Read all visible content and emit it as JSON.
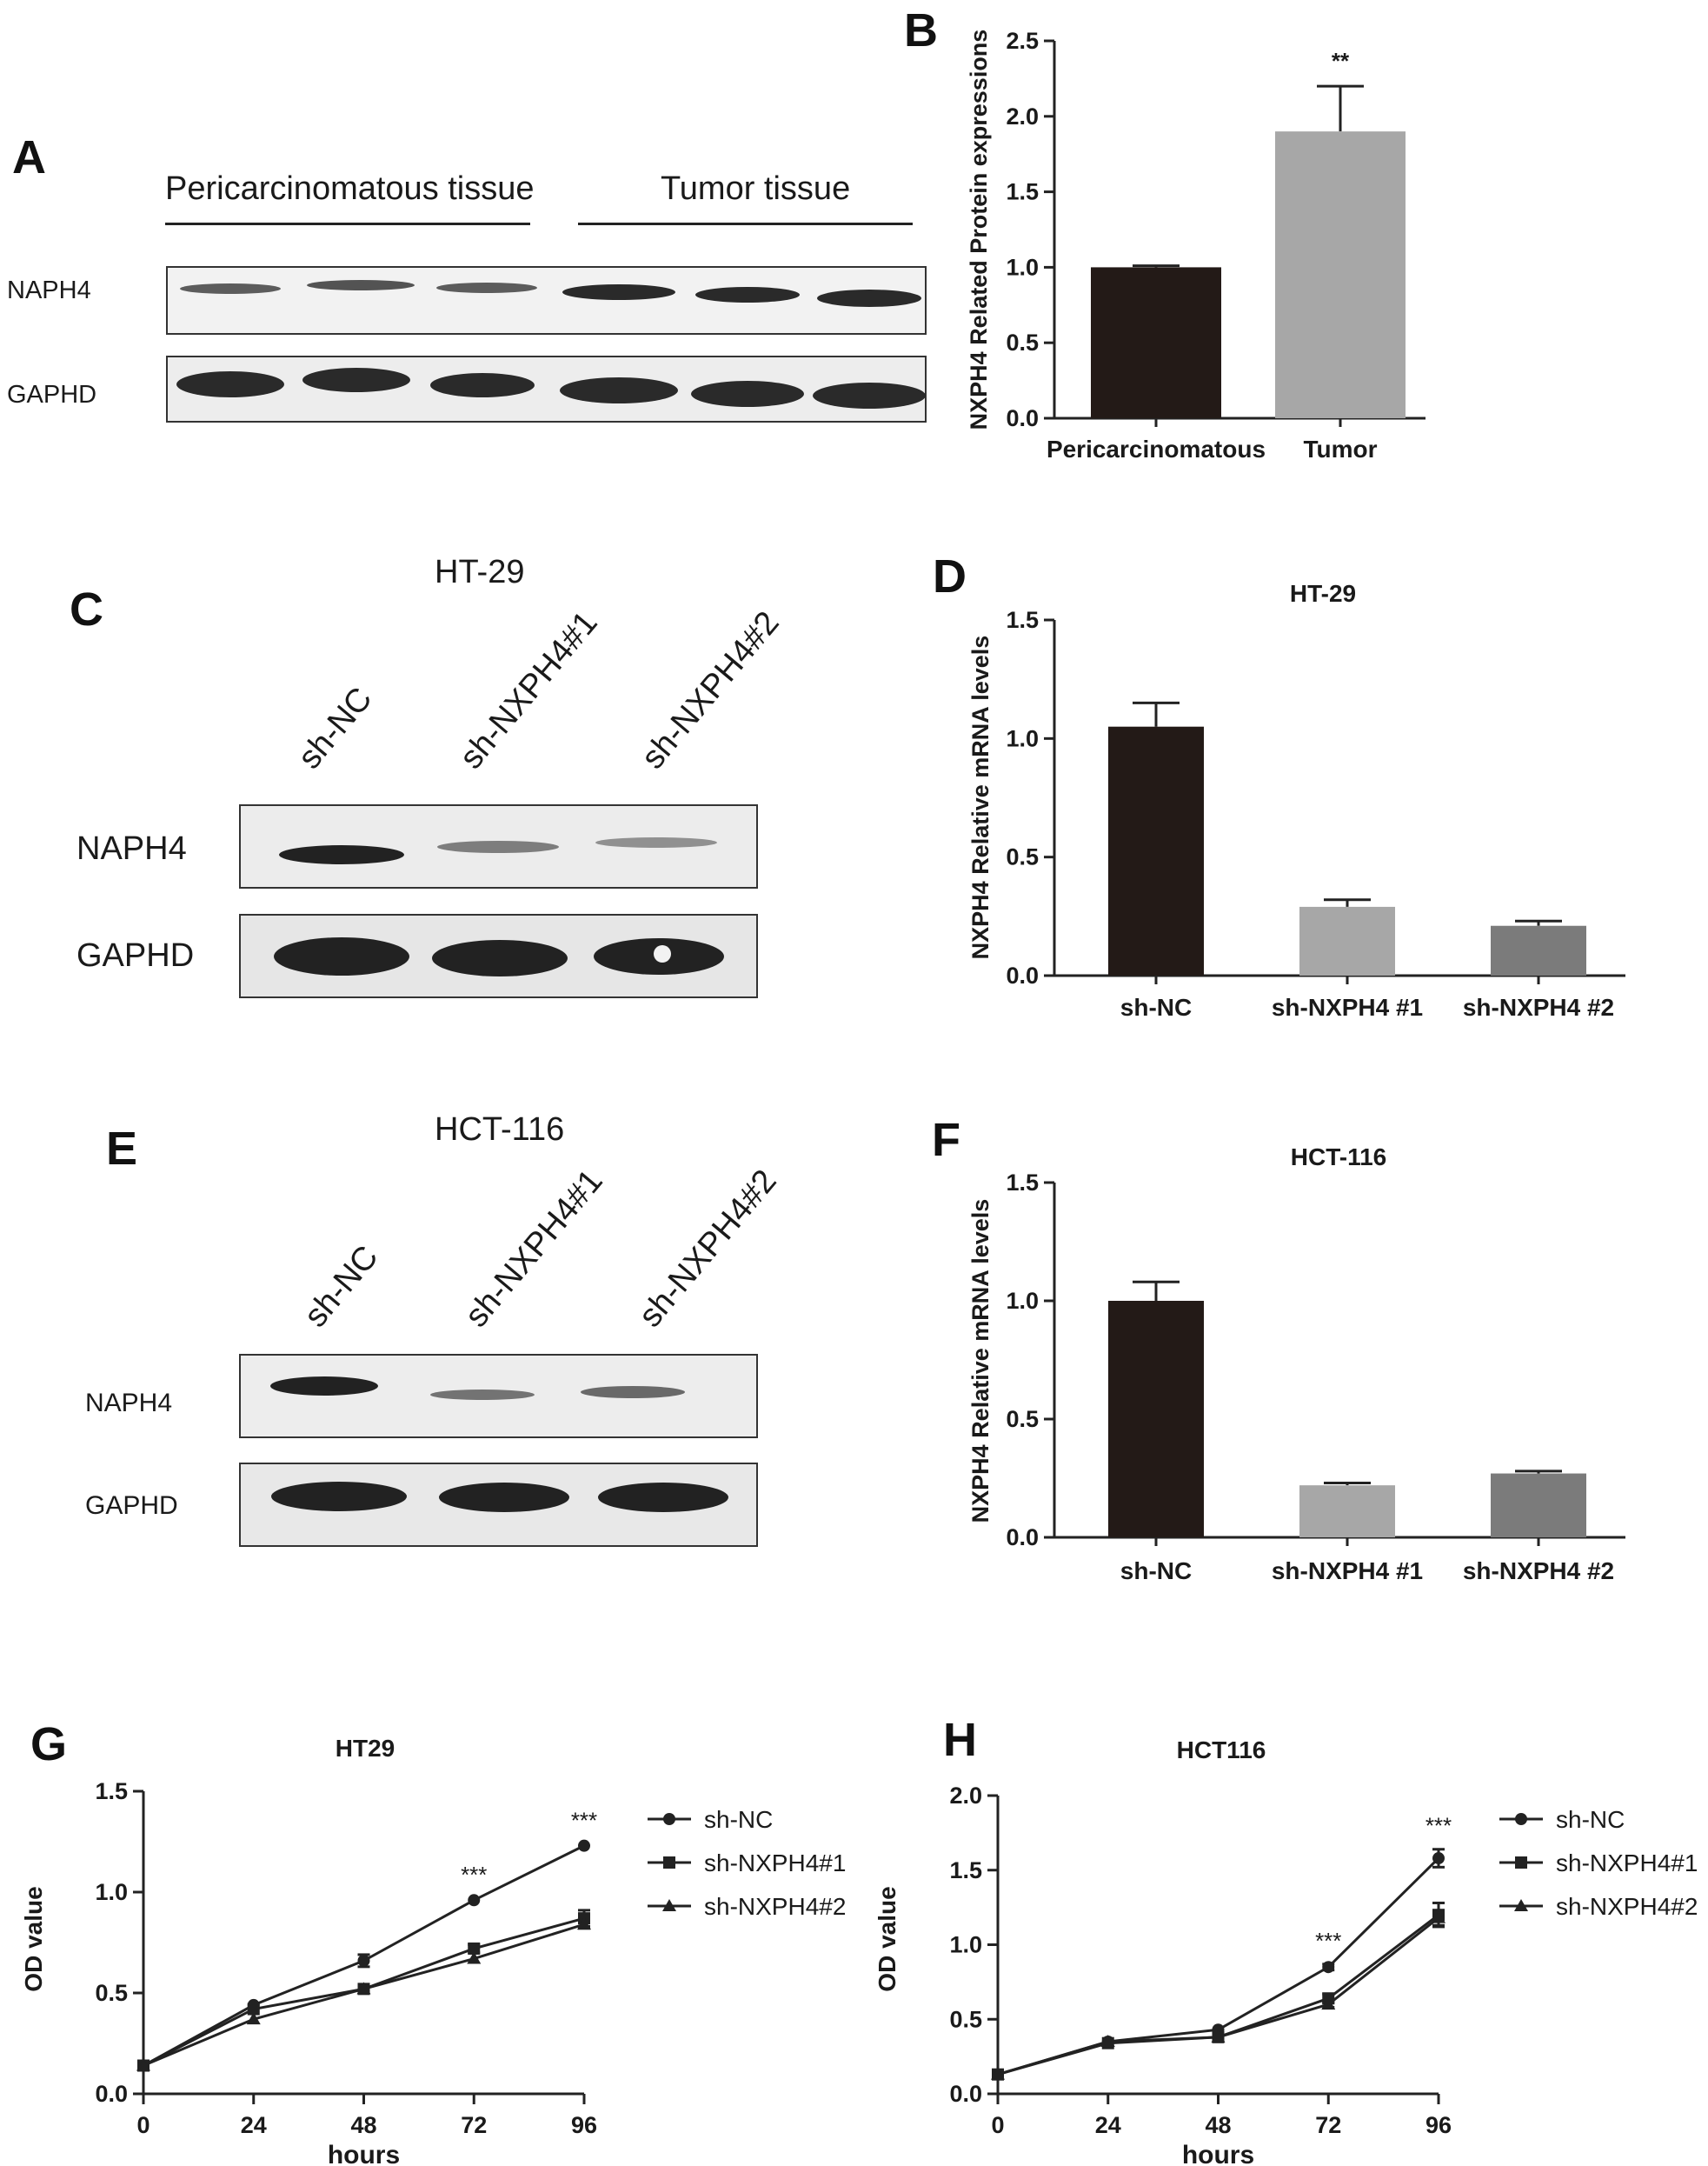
{
  "panels": {
    "A": {
      "label": "A",
      "groups": [
        "Pericarcinomatous tissue",
        "Tumor tissue"
      ],
      "rows": [
        "NAPH4",
        "GAPHD"
      ]
    },
    "C": {
      "label": "C",
      "title": "HT-29",
      "lanes": [
        "sh-NC",
        "sh-NXPH4#1",
        "sh-NXPH4#2"
      ],
      "rows": [
        "NAPH4",
        "GAPHD"
      ]
    },
    "E": {
      "label": "E",
      "title": "HCT-116",
      "lanes": [
        "sh-NC",
        "sh-NXPH4#1",
        "sh-NXPH4#2"
      ],
      "rows": [
        "NAPH4",
        "GAPHD"
      ]
    },
    "B": {
      "label": "B"
    },
    "D": {
      "label": "D"
    },
    "F": {
      "label": "F"
    },
    "G": {
      "label": "G"
    },
    "H": {
      "label": "H"
    }
  },
  "colors": {
    "bar_dark": "#231a17",
    "bar_light": "#a7a7a7",
    "bar_mid": "#7b7b7b",
    "line": "#222222"
  },
  "chart_data": [
    {
      "id": "B",
      "type": "bar",
      "title": "",
      "ylabel": "NXPH4 Related Protein expressions",
      "categories": [
        "Pericarcinomatous",
        "Tumor"
      ],
      "values": [
        1.0,
        1.9
      ],
      "errors": [
        0.01,
        0.3
      ],
      "annotations": [
        "",
        "**"
      ],
      "ylim": [
        0,
        2.5
      ],
      "yticks": [
        "0.0",
        "0.5",
        "1.0",
        "1.5",
        "2.0",
        "2.5"
      ]
    },
    {
      "id": "D",
      "type": "bar",
      "title": "HT-29",
      "ylabel": "NXPH4 Relative mRNA levels",
      "categories": [
        "sh-NC",
        "sh-NXPH4 #1",
        "sh-NXPH4 #2"
      ],
      "values": [
        1.05,
        0.29,
        0.21
      ],
      "errors": [
        0.1,
        0.03,
        0.02
      ],
      "ylim": [
        0,
        1.5
      ],
      "yticks": [
        "0.0",
        "0.5",
        "1.0",
        "1.5"
      ]
    },
    {
      "id": "F",
      "type": "bar",
      "title": "HCT-116",
      "ylabel": "NXPH4 Relative mRNA levels",
      "categories": [
        "sh-NC",
        "sh-NXPH4 #1",
        "sh-NXPH4 #2"
      ],
      "values": [
        1.0,
        0.22,
        0.27
      ],
      "errors": [
        0.08,
        0.01,
        0.01
      ],
      "ylim": [
        0,
        1.5
      ],
      "yticks": [
        "0.0",
        "0.5",
        "1.0",
        "1.5"
      ]
    },
    {
      "id": "G",
      "type": "line",
      "title": "HT29",
      "xlabel": "hours",
      "ylabel": "OD value",
      "x": [
        0,
        24,
        48,
        72,
        96
      ],
      "xticks": [
        "0",
        "24",
        "48",
        "72",
        "96"
      ],
      "ylim": [
        0,
        1.5
      ],
      "yticks": [
        "0.0",
        "0.5",
        "1.0",
        "1.5"
      ],
      "legend": "right",
      "series": [
        {
          "name": "sh-NC",
          "marker": "circle",
          "values": [
            0.14,
            0.44,
            0.66,
            0.96,
            1.23
          ],
          "errors": [
            0.01,
            0.01,
            0.03,
            0.01,
            0.01
          ]
        },
        {
          "name": "sh-NXPH4#1",
          "marker": "square",
          "values": [
            0.14,
            0.42,
            0.52,
            0.72,
            0.87
          ],
          "errors": [
            0.01,
            0.01,
            0.01,
            0.02,
            0.04
          ]
        },
        {
          "name": "sh-NXPH4#2",
          "marker": "triangle",
          "values": [
            0.14,
            0.37,
            0.52,
            0.67,
            0.84
          ],
          "errors": [
            0.01,
            0.01,
            0.01,
            0.01,
            0.02
          ]
        }
      ],
      "annotations": [
        {
          "x": 72,
          "text": "***"
        },
        {
          "x": 96,
          "text": "***"
        }
      ]
    },
    {
      "id": "H",
      "type": "line",
      "title": "HCT116",
      "xlabel": "hours",
      "ylabel": "OD value",
      "x": [
        0,
        24,
        48,
        72,
        96
      ],
      "xticks": [
        "0",
        "24",
        "48",
        "72",
        "96"
      ],
      "ylim": [
        0,
        2.0
      ],
      "yticks": [
        "0.0",
        "0.5",
        "1.0",
        "1.5",
        "2.0"
      ],
      "legend": "right",
      "series": [
        {
          "name": "sh-NC",
          "marker": "circle",
          "values": [
            0.13,
            0.35,
            0.43,
            0.85,
            1.58
          ],
          "errors": [
            0.01,
            0.01,
            0.01,
            0.02,
            0.06
          ]
        },
        {
          "name": "sh-NXPH4#1",
          "marker": "square",
          "values": [
            0.13,
            0.34,
            0.38,
            0.64,
            1.2
          ],
          "errors": [
            0.01,
            0.01,
            0.01,
            0.03,
            0.08
          ]
        },
        {
          "name": "sh-NXPH4#2",
          "marker": "triangle",
          "values": [
            0.13,
            0.35,
            0.38,
            0.6,
            1.18
          ],
          "errors": [
            0.01,
            0.01,
            0.01,
            0.02,
            0.05
          ]
        }
      ],
      "annotations": [
        {
          "x": 72,
          "text": "***"
        },
        {
          "x": 96,
          "text": "***"
        }
      ]
    }
  ]
}
